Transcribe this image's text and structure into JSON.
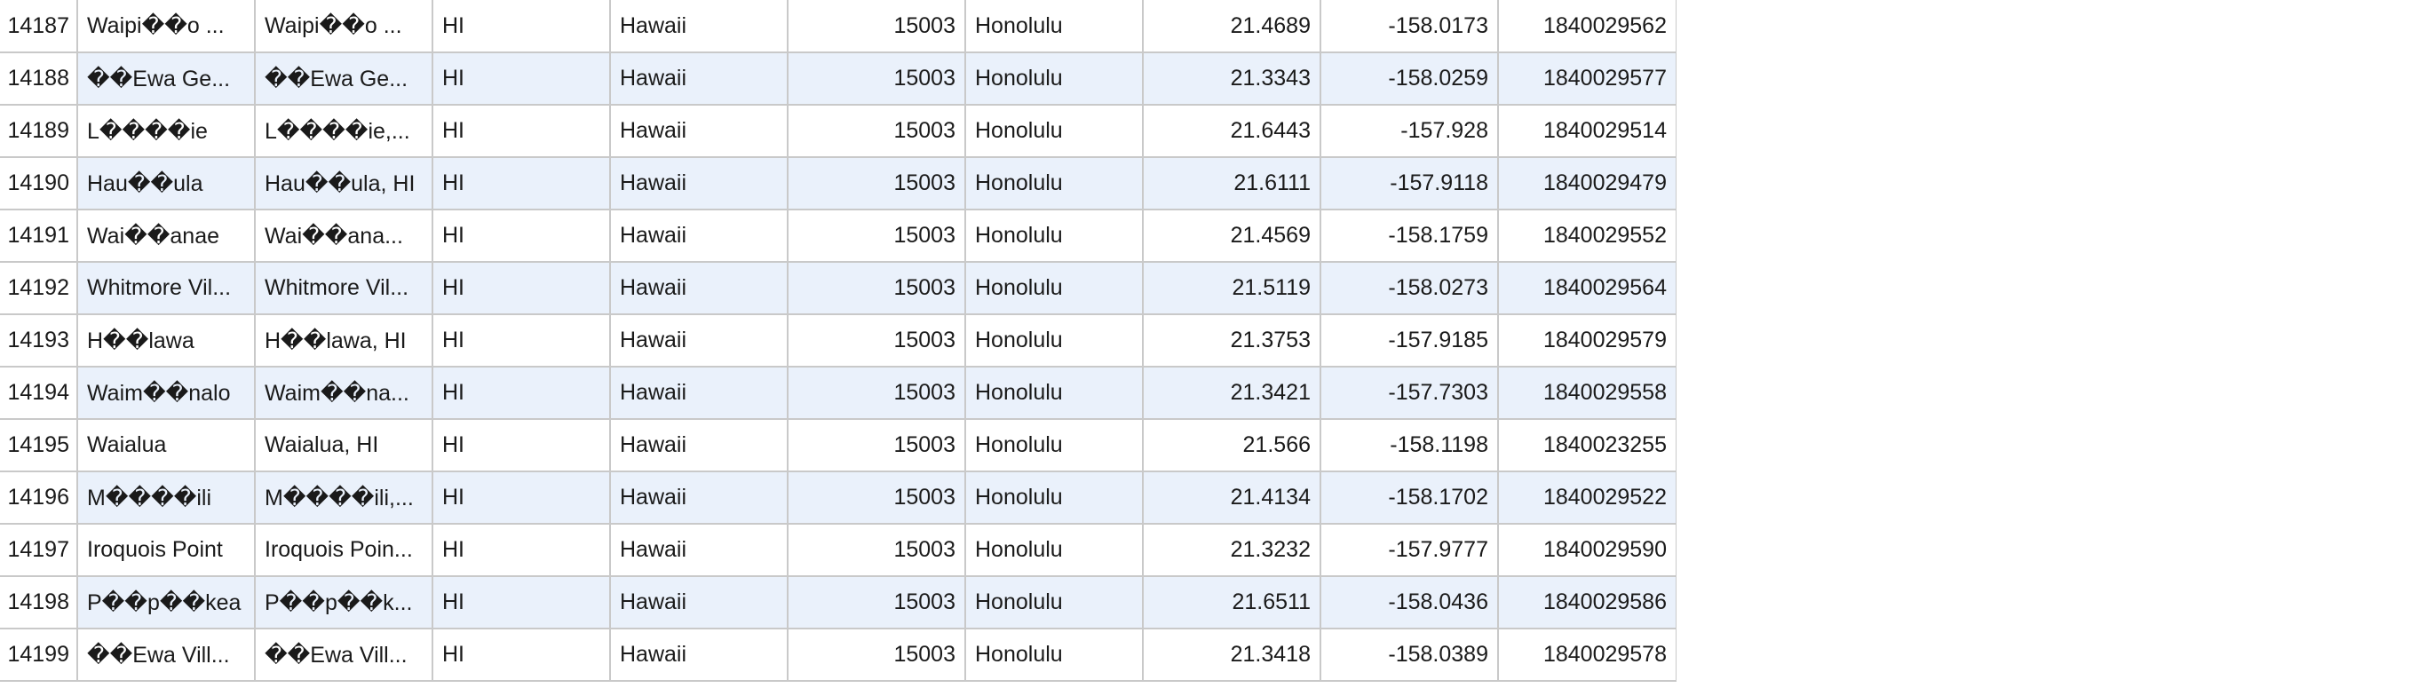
{
  "rows": [
    {
      "row": "14187",
      "city": "Waipi��o ...",
      "city_state": "Waipi��o ...",
      "state_id": "HI",
      "state_name": "Hawaii",
      "county_fips": "15003",
      "county_name": "Honolulu",
      "lat": "21.4689",
      "lng": "-158.0173",
      "id": "1840029562"
    },
    {
      "row": "14188",
      "city": "��Ewa Ge...",
      "city_state": "��Ewa Ge...",
      "state_id": "HI",
      "state_name": "Hawaii",
      "county_fips": "15003",
      "county_name": "Honolulu",
      "lat": "21.3343",
      "lng": "-158.0259",
      "id": "1840029577"
    },
    {
      "row": "14189",
      "city": "L����ie",
      "city_state": "L����ie,...",
      "state_id": "HI",
      "state_name": "Hawaii",
      "county_fips": "15003",
      "county_name": "Honolulu",
      "lat": "21.6443",
      "lng": "-157.928",
      "id": "1840029514"
    },
    {
      "row": "14190",
      "city": "Hau��ula",
      "city_state": "Hau��ula, HI",
      "state_id": "HI",
      "state_name": "Hawaii",
      "county_fips": "15003",
      "county_name": "Honolulu",
      "lat": "21.6111",
      "lng": "-157.9118",
      "id": "1840029479"
    },
    {
      "row": "14191",
      "city": "Wai��anae",
      "city_state": "Wai��ana...",
      "state_id": "HI",
      "state_name": "Hawaii",
      "county_fips": "15003",
      "county_name": "Honolulu",
      "lat": "21.4569",
      "lng": "-158.1759",
      "id": "1840029552"
    },
    {
      "row": "14192",
      "city": "Whitmore Vil...",
      "city_state": "Whitmore Vil...",
      "state_id": "HI",
      "state_name": "Hawaii",
      "county_fips": "15003",
      "county_name": "Honolulu",
      "lat": "21.5119",
      "lng": "-158.0273",
      "id": "1840029564"
    },
    {
      "row": "14193",
      "city": "H��lawa",
      "city_state": "H��lawa, HI",
      "state_id": "HI",
      "state_name": "Hawaii",
      "county_fips": "15003",
      "county_name": "Honolulu",
      "lat": "21.3753",
      "lng": "-157.9185",
      "id": "1840029579"
    },
    {
      "row": "14194",
      "city": "Waim��nalo",
      "city_state": "Waim��na...",
      "state_id": "HI",
      "state_name": "Hawaii",
      "county_fips": "15003",
      "county_name": "Honolulu",
      "lat": "21.3421",
      "lng": "-157.7303",
      "id": "1840029558"
    },
    {
      "row": "14195",
      "city": "Waialua",
      "city_state": "Waialua, HI",
      "state_id": "HI",
      "state_name": "Hawaii",
      "county_fips": "15003",
      "county_name": "Honolulu",
      "lat": "21.566",
      "lng": "-158.1198",
      "id": "1840023255"
    },
    {
      "row": "14196",
      "city": "M����ili",
      "city_state": "M����ili,...",
      "state_id": "HI",
      "state_name": "Hawaii",
      "county_fips": "15003",
      "county_name": "Honolulu",
      "lat": "21.4134",
      "lng": "-158.1702",
      "id": "1840029522"
    },
    {
      "row": "14197",
      "city": "Iroquois Point",
      "city_state": "Iroquois Poin...",
      "state_id": "HI",
      "state_name": "Hawaii",
      "county_fips": "15003",
      "county_name": "Honolulu",
      "lat": "21.3232",
      "lng": "-157.9777",
      "id": "1840029590"
    },
    {
      "row": "14198",
      "city": "P��p��kea",
      "city_state": "P��p��k...",
      "state_id": "HI",
      "state_name": "Hawaii",
      "county_fips": "15003",
      "county_name": "Honolulu",
      "lat": "21.6511",
      "lng": "-158.0436",
      "id": "1840029586"
    },
    {
      "row": "14199",
      "city": "��Ewa Vill...",
      "city_state": "��Ewa Vill...",
      "state_id": "HI",
      "state_name": "Hawaii",
      "county_fips": "15003",
      "county_name": "Honolulu",
      "lat": "21.3418",
      "lng": "-158.0389",
      "id": "1840029578"
    }
  ],
  "colors": {
    "alt_row_bg": "#eaf1fb",
    "grid_line": "#c9c9c9",
    "text": "#1a1a1a"
  }
}
